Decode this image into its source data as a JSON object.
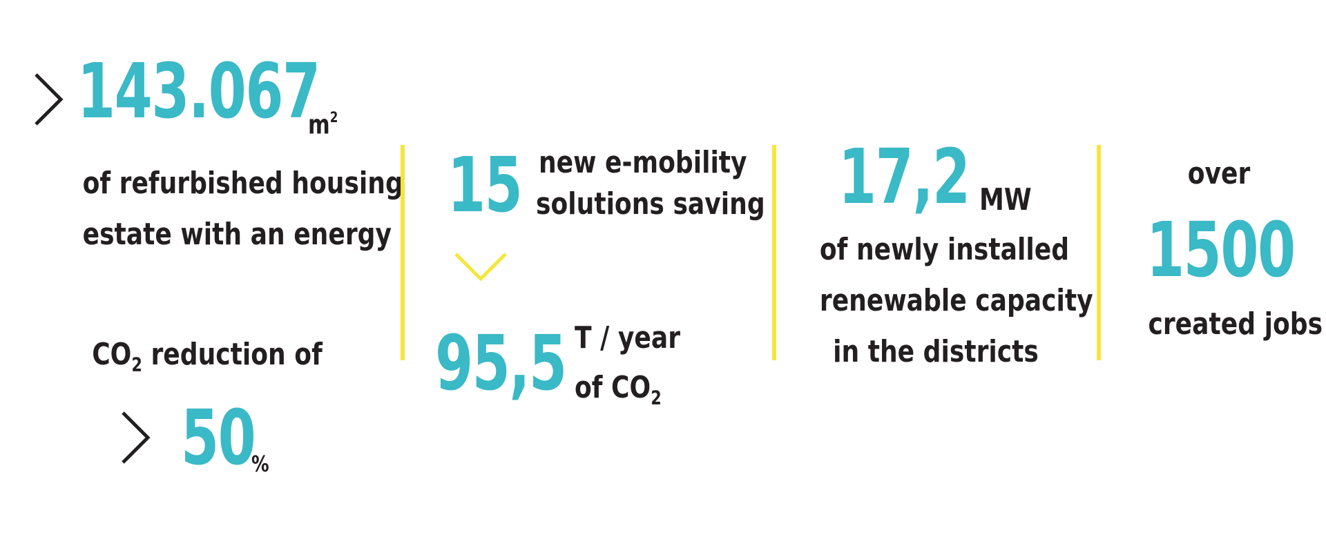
{
  "stats": {
    "area": {
      "value": "143.067",
      "unit": "m",
      "unit_sup": "2",
      "line1": "of refurbished housing",
      "line2": "estate with an energy",
      "co2_prefix": "CO",
      "co2_sub": "2",
      "co2_suffix": " reduction of",
      "reduction_value": "50",
      "reduction_unit": "%"
    },
    "mobility": {
      "value": "15",
      "line1": "new e-mobility",
      "line2": "solutions saving",
      "saving_value": "95,5",
      "saving_unit": "T / year",
      "of_prefix": "of CO",
      "of_sub": "2"
    },
    "renewable": {
      "value": "17,2",
      "unit": "MW",
      "line1": "of newly installed",
      "line2": "renewable capacity",
      "line3": "in the districts"
    },
    "jobs": {
      "over": "over",
      "value": "1500",
      "label": "created jobs"
    }
  },
  "colors": {
    "accent_teal": "#3ab9c6",
    "divider_yellow": "#f5e63c",
    "text_dark": "#231f20"
  },
  "icons": [
    "chevron-right-icon",
    "chevron-down-icon"
  ]
}
